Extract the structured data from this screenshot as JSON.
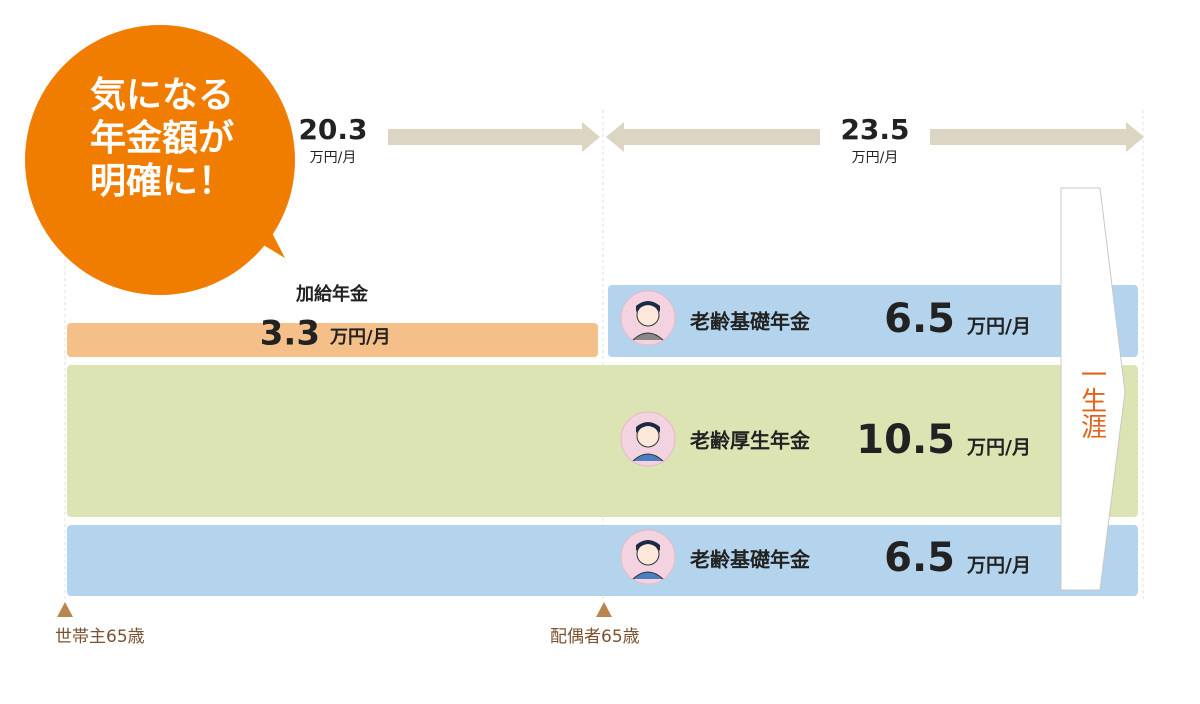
{
  "badge": {
    "lines": [
      "気になる",
      "年金額が",
      "明確に！"
    ]
  },
  "totals": [
    {
      "amount": "20.3",
      "unit": "万円/月"
    },
    {
      "amount": "23.5",
      "unit": "万円/月"
    }
  ],
  "spousal_allowance": {
    "label": "加給年金",
    "amount": "3.3",
    "unit": "万円/月"
  },
  "pensions": [
    {
      "label": "老齢基礎年金",
      "amount": "6.5",
      "unit": "万円/月"
    },
    {
      "label": "老齢厚生年金",
      "amount": "10.5",
      "unit": "万円/月"
    },
    {
      "label": "老齢基礎年金",
      "amount": "6.5",
      "unit": "万円/月"
    }
  ],
  "lifetime": "一生涯",
  "milestones": [
    "世帯主65歳",
    "配偶者65歳"
  ]
}
